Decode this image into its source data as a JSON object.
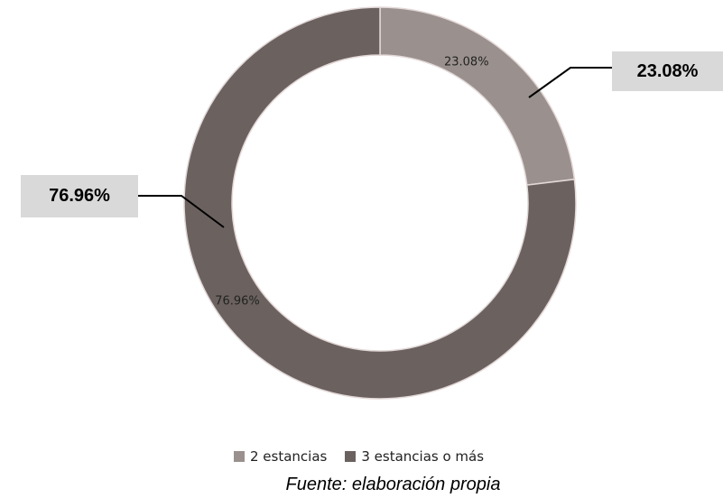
{
  "chart_data": {
    "type": "pie",
    "variant": "donut",
    "categories": [
      "2 estancias",
      "3 estancias o más"
    ],
    "values": [
      23.08,
      76.96
    ],
    "slice_labels": [
      "23.08%",
      "76.96%"
    ],
    "callouts": [
      "23.08%",
      "76.96%"
    ],
    "colors": [
      "#9a918e",
      "#6b625f"
    ],
    "legend_position": "bottom",
    "title": ""
  },
  "legend": {
    "items": [
      {
        "label": "2 estancias",
        "color": "#9a918e"
      },
      {
        "label": "3 estancias o más",
        "color": "#6b625f"
      }
    ]
  },
  "source": "Fuente: elaboración propia"
}
